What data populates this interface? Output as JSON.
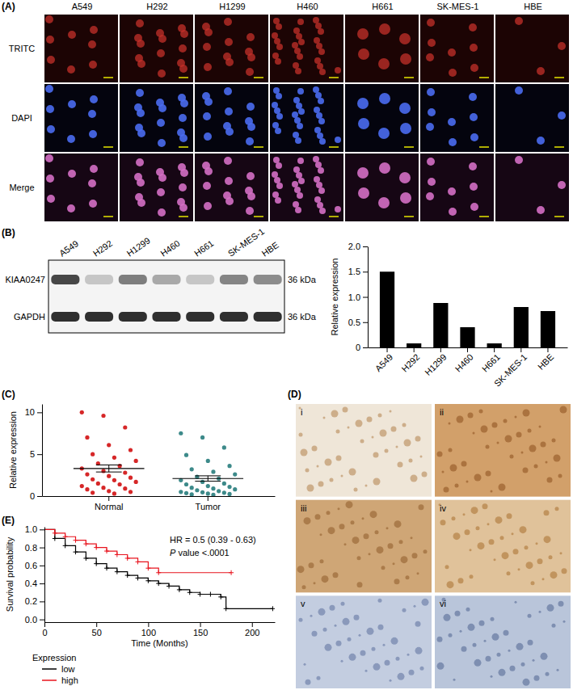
{
  "panel_labels": [
    "(A)",
    "(B)",
    "(C)",
    "(D)",
    "(E)"
  ],
  "microscopy": {
    "cell_lines": [
      "A549",
      "H292",
      "H1299",
      "H460",
      "H661",
      "SK-MES-1",
      "HBE"
    ],
    "channels": [
      "TRITC",
      "DAPI",
      "Merge"
    ]
  },
  "blot": {
    "lanes": [
      "A549",
      "H292",
      "H1299",
      "H460",
      "H661",
      "SK-MES-1",
      "HBE"
    ],
    "rows": [
      "KIAA0247",
      "GAPDH"
    ],
    "sizes": [
      "36 kDa",
      "36 kDa"
    ]
  },
  "ihc": {
    "labels": [
      "i",
      "ii",
      "iii",
      "iv",
      "v",
      "vi"
    ]
  },
  "chart_data": [
    {
      "type": "bar",
      "y_label": "Relative expression",
      "categories": [
        "A549",
        "H292",
        "H1299",
        "H460",
        "H661",
        "SK-MES-1",
        "HBE"
      ],
      "values": [
        1.5,
        0.08,
        0.88,
        0.4,
        0.08,
        0.8,
        0.72
      ],
      "color": "#000000",
      "ylim": [
        0,
        2
      ],
      "yticks": [
        0,
        0.5,
        {
          "value": 1,
          "label": "1.0"
        },
        1.5,
        {
          "value": 2,
          "label": "2.0"
        }
      ]
    },
    {
      "type": "dot_plot",
      "y_label": "Relative expression",
      "categories": [
        "Normal",
        "Tumor"
      ],
      "colors": [
        "#d62728",
        "#3d8a8a"
      ],
      "values": [
        [
          10,
          9.6,
          8.2,
          7.0,
          6.1,
          5.5,
          5.0,
          4.6,
          4.2,
          3.9,
          3.6,
          3.3,
          3.0,
          2.8,
          2.6,
          2.4,
          2.2,
          2.0,
          1.9,
          1.7,
          1.5,
          1.4,
          1.2,
          1.0,
          0.9,
          0.8,
          0.6,
          0.5,
          0.4,
          0.3
        ],
        [
          7.5,
          7.0,
          5.8,
          4.9,
          4.2,
          3.6,
          3.2,
          2.9,
          2.6,
          2.3,
          2.1,
          1.9,
          1.7,
          1.5,
          1.4,
          1.2,
          1.1,
          1.0,
          0.9,
          0.8,
          0.7,
          0.6,
          0.5,
          0.45,
          0.4,
          0.35,
          0.3,
          0.25,
          0.2,
          0.15
        ]
      ],
      "mean": [
        3.3,
        2.1
      ],
      "error": [
        0.42,
        0.32
      ],
      "ylim": [
        0,
        11
      ],
      "yticks": [
        0,
        5,
        10
      ]
    },
    {
      "type": "line",
      "x_label": "Time (Months)",
      "y_label": "Survival probability",
      "legend_title": "Expression",
      "annotations": [
        "HR = 0.5 (0.39 - 0.63)",
        "P value <.0001"
      ],
      "xlim": [
        0,
        222
      ],
      "xticks": [
        0,
        50,
        100,
        150,
        200
      ],
      "ylim": [
        -0.03,
        1.03
      ],
      "yticks": [
        {
          "value": 0,
          "label": "0.0"
        },
        0.2,
        0.4,
        0.6,
        0.8,
        {
          "value": 1,
          "label": "1.0"
        }
      ],
      "series": [
        {
          "name": "low",
          "color": "#000000",
          "line_style": "step",
          "marker": "plus",
          "x": [
            0,
            10,
            20,
            30,
            40,
            50,
            60,
            70,
            80,
            90,
            100,
            110,
            120,
            130,
            140,
            150,
            160,
            170,
            175,
            220
          ],
          "values": [
            1.0,
            0.9,
            0.82,
            0.75,
            0.68,
            0.62,
            0.57,
            0.53,
            0.49,
            0.46,
            0.43,
            0.4,
            0.37,
            0.33,
            0.3,
            0.28,
            0.28,
            0.25,
            0.12,
            0.12
          ]
        },
        {
          "name": "high",
          "color": "#e8141e",
          "line_style": "step",
          "marker": "plus",
          "x": [
            0,
            10,
            20,
            30,
            40,
            50,
            60,
            70,
            80,
            90,
            100,
            110,
            180
          ],
          "values": [
            1.0,
            0.96,
            0.92,
            0.88,
            0.84,
            0.8,
            0.76,
            0.72,
            0.68,
            0.64,
            0.57,
            0.52,
            0.52
          ]
        }
      ]
    }
  ]
}
